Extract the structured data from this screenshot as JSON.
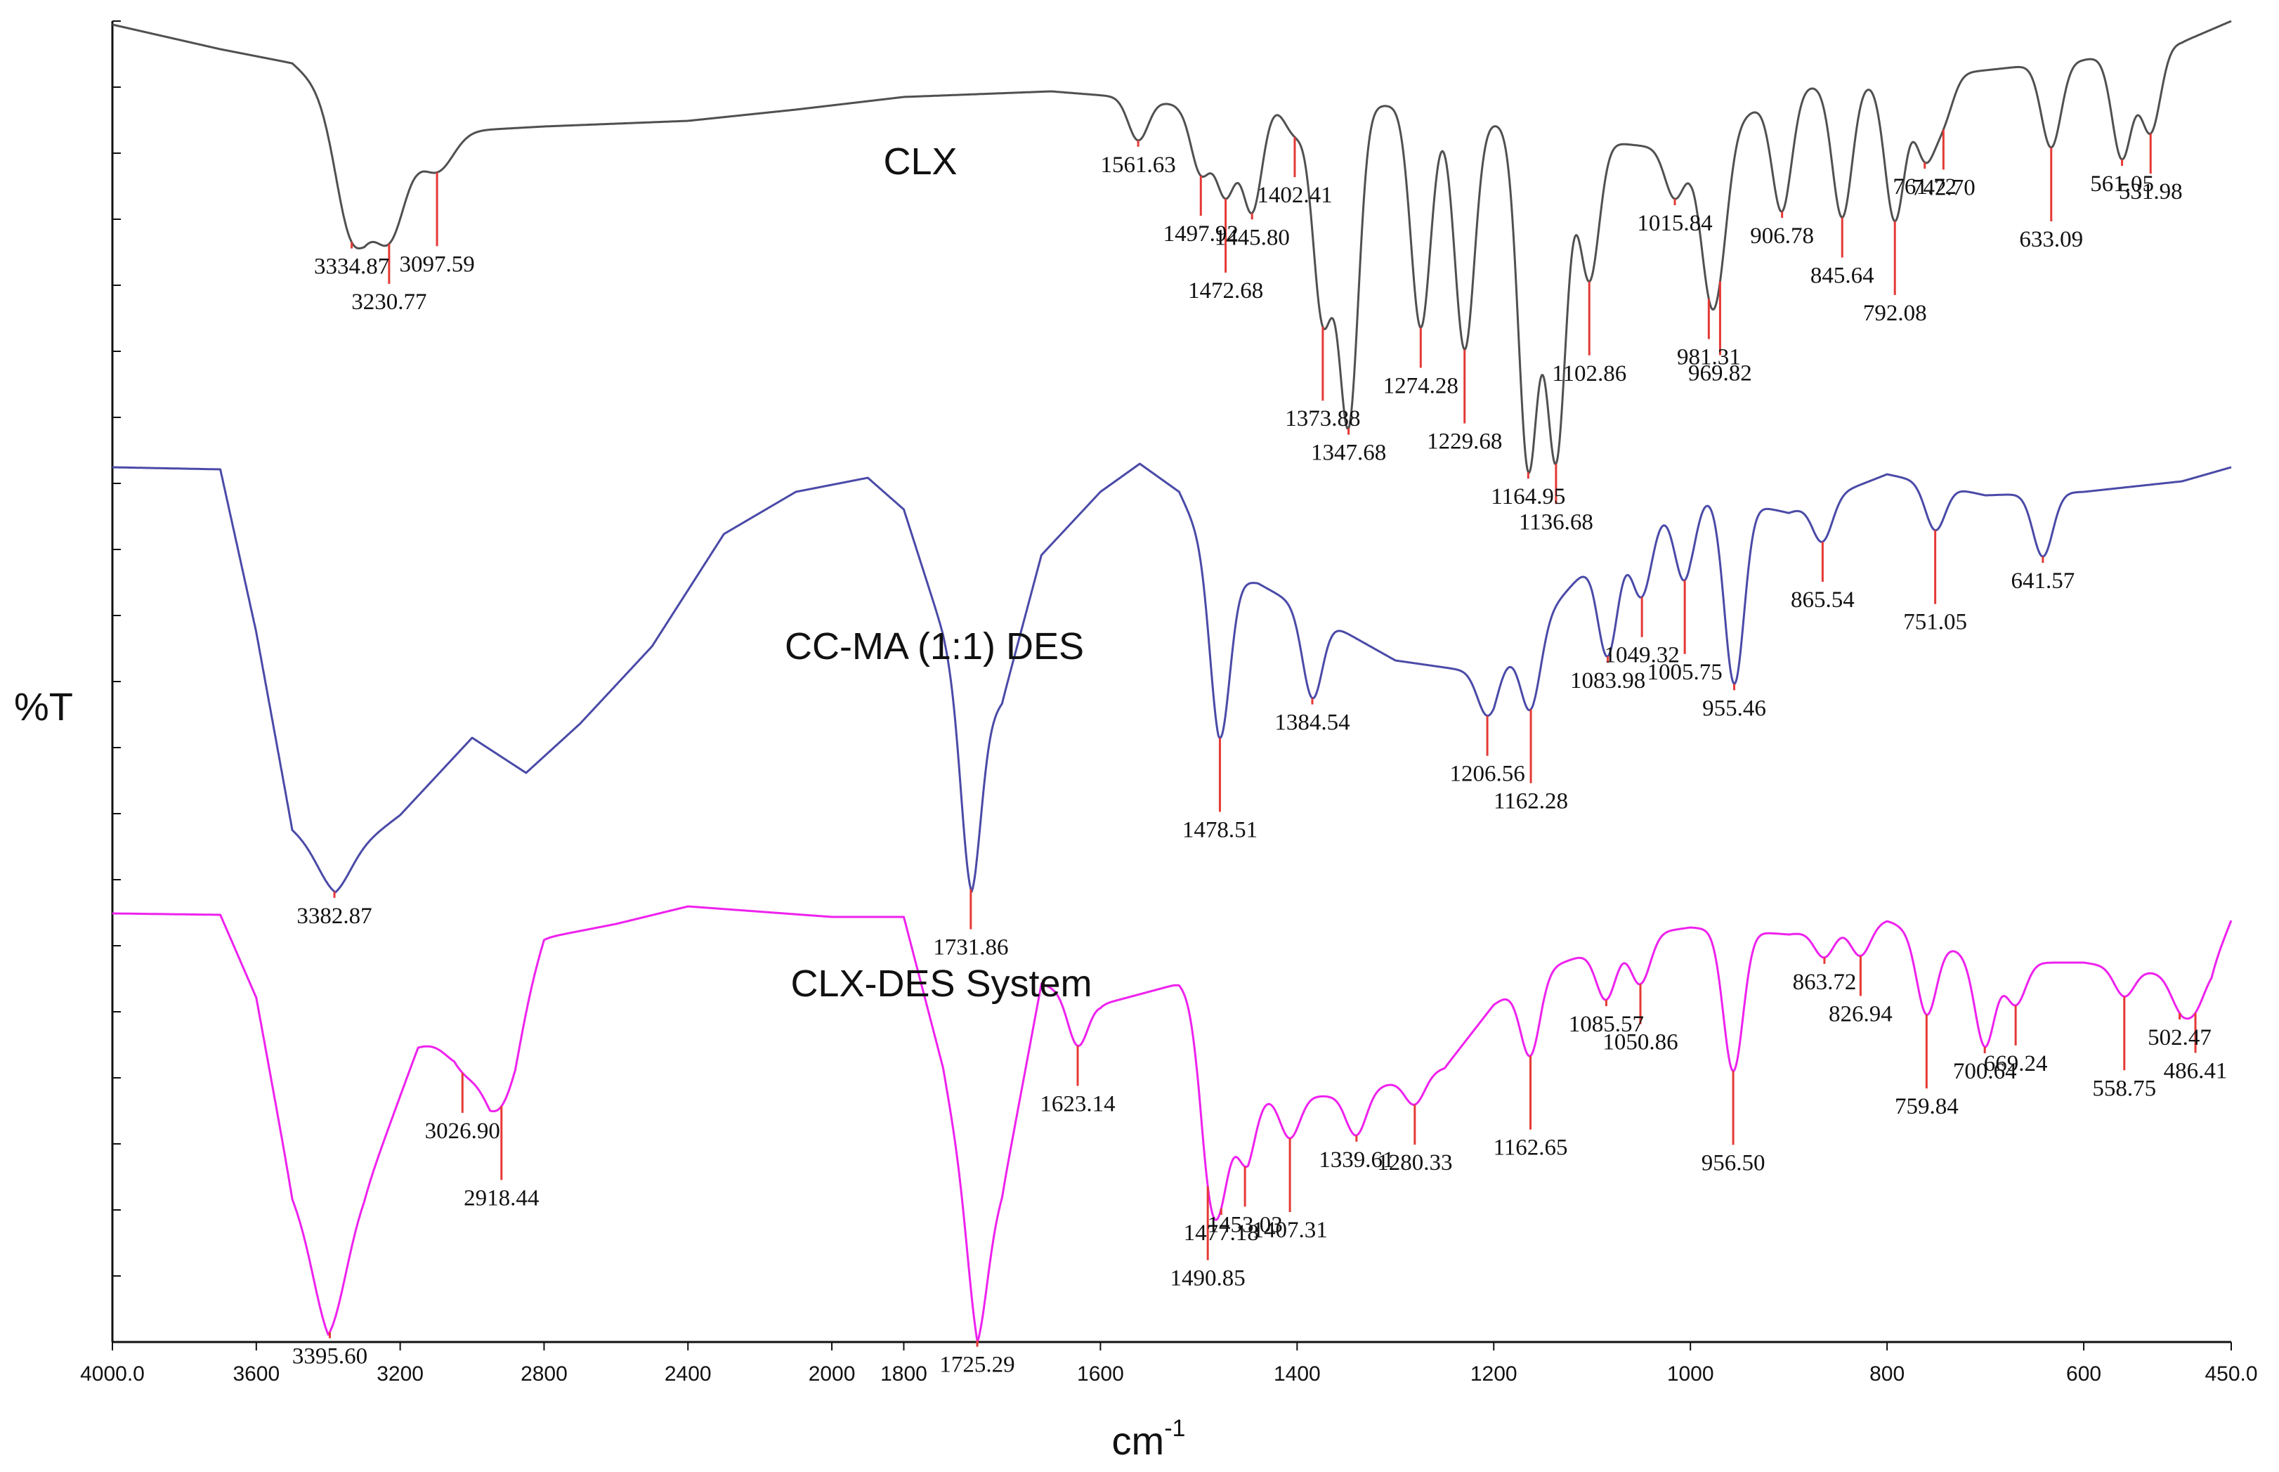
{
  "chart_data": {
    "type": "line",
    "title": "",
    "xlabel": "cm",
    "xlabel_superscript": "-1",
    "ylabel": "%T",
    "xlim": [
      4000,
      450
    ],
    "x_ticks": [
      "4000.0",
      "3600",
      "3200",
      "2800",
      "2400",
      "2000",
      "1800",
      "1600",
      "1400",
      "1200",
      "1000",
      "800",
      "600",
      "450.0"
    ],
    "grid": false,
    "series": [
      {
        "name": "CLX",
        "color": "#505050",
        "marker_color": "#e53935",
        "peaks": [
          "3334.87",
          "3230.77",
          "3097.59",
          "1561.63",
          "1497.92",
          "1472.68",
          "1445.80",
          "1402.41",
          "1373.88",
          "1347.68",
          "1274.28",
          "1229.68",
          "1164.95",
          "1136.68",
          "1102.86",
          "1015.84",
          "981.31",
          "969.82",
          "906.78",
          "845.64",
          "792.08",
          "761.72",
          "742.70",
          "633.09",
          "561.05",
          "531.98"
        ]
      },
      {
        "name": "CC-MA (1:1) DES",
        "color": "#4a4aa8",
        "marker_color": "#e53935",
        "peaks": [
          "3382.87",
          "1731.86",
          "1478.51",
          "1384.54",
          "1206.56",
          "1162.28",
          "1083.98",
          "1049.32",
          "1005.75",
          "955.46",
          "865.54",
          "751.05",
          "641.57"
        ]
      },
      {
        "name": "CLX-DES System",
        "color": "#ee22ee",
        "marker_color": "#e53935",
        "peaks": [
          "3395.60",
          "3026.90",
          "2918.44",
          "1725.29",
          "1623.14",
          "1490.85",
          "1477.18",
          "1453.03",
          "1407.31",
          "1339.61",
          "1280.33",
          "1162.65",
          "1085.57",
          "1050.86",
          "956.50",
          "863.72",
          "826.94",
          "759.84",
          "700.64",
          "669.24",
          "558.75",
          "502.47",
          "486.41"
        ]
      }
    ]
  }
}
